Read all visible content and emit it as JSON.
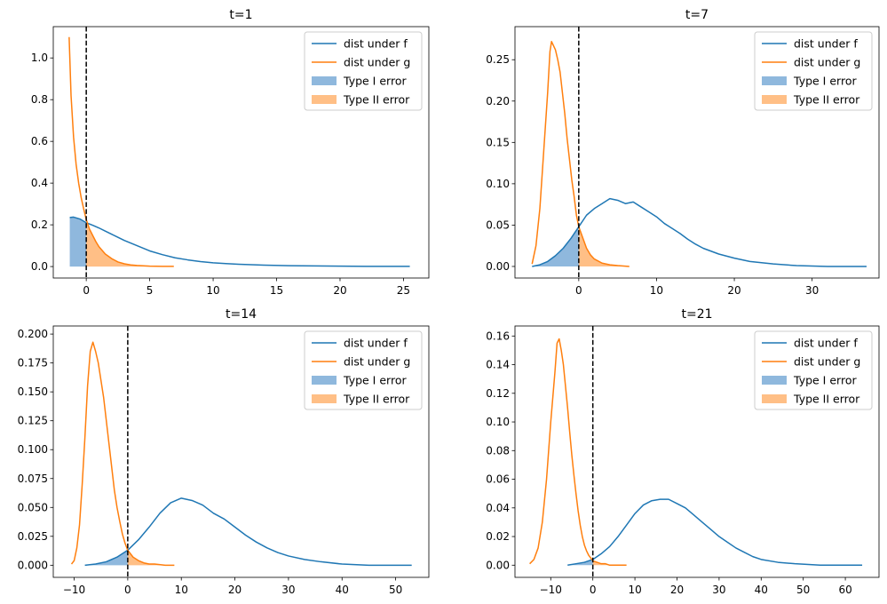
{
  "colors": {
    "f": "#1f77b4",
    "g": "#ff7f0e",
    "type1_fill": "#8fb8dd",
    "type2_fill": "#ffbf86",
    "threshold": "#000000"
  },
  "legend": {
    "labels": [
      "dist under f",
      "dist under g",
      "Type I error",
      "Type II error"
    ],
    "placement": "upper right"
  },
  "chart_data": [
    {
      "type": "line",
      "title": "t=1",
      "threshold_x": 0,
      "xlim": [
        -2.6,
        27
      ],
      "ylim": [
        -0.055,
        1.15
      ],
      "xticks": [
        0,
        5,
        10,
        15,
        20,
        25
      ],
      "yticks": [
        0.0,
        0.2,
        0.4,
        0.6,
        0.8,
        1.0
      ],
      "ytick_labels": [
        "0.0",
        "0.2",
        "0.4",
        "0.6",
        "0.8",
        "1.0"
      ],
      "series": [
        {
          "name": "dist under f",
          "x": [
            -1.3,
            -1.0,
            -0.5,
            0.0,
            0.5,
            1.0,
            1.5,
            2.0,
            2.5,
            3.0,
            4.0,
            5.0,
            6.0,
            7.0,
            8.0,
            9.0,
            10.0,
            11.0,
            12.0,
            14.0,
            16.0,
            18.0,
            20.0,
            22.0,
            25.5
          ],
          "y": [
            0.235,
            0.237,
            0.228,
            0.21,
            0.198,
            0.185,
            0.17,
            0.155,
            0.14,
            0.125,
            0.1,
            0.075,
            0.057,
            0.042,
            0.032,
            0.024,
            0.018,
            0.014,
            0.011,
            0.007,
            0.004,
            0.003,
            0.002,
            0.001,
            0.001
          ]
        },
        {
          "name": "dist under g",
          "x": [
            -1.35,
            -1.2,
            -1.0,
            -0.8,
            -0.6,
            -0.4,
            -0.2,
            0.0,
            0.25,
            0.5,
            0.75,
            1.0,
            1.5,
            2.0,
            2.5,
            3.0,
            3.5,
            4.0,
            5.0,
            6.0,
            6.9
          ],
          "y": [
            1.1,
            0.82,
            0.62,
            0.49,
            0.4,
            0.33,
            0.275,
            0.225,
            0.18,
            0.15,
            0.12,
            0.095,
            0.06,
            0.038,
            0.022,
            0.013,
            0.008,
            0.005,
            0.002,
            0.001,
            0.001
          ]
        }
      ]
    },
    {
      "type": "line",
      "title": "t=7",
      "threshold_x": 0,
      "xlim": [
        -8.2,
        38.6
      ],
      "ylim": [
        -0.014,
        0.29
      ],
      "xticks": [
        0,
        10,
        20,
        30
      ],
      "yticks": [
        0.0,
        0.05,
        0.1,
        0.15,
        0.2,
        0.25
      ],
      "ytick_labels": [
        "0.00",
        "0.05",
        "0.10",
        "0.15",
        "0.20",
        "0.25"
      ],
      "series": [
        {
          "name": "dist under f",
          "x": [
            -6.0,
            -5.0,
            -4.0,
            -3.0,
            -2.0,
            -1.0,
            0.0,
            1.0,
            2.0,
            3.0,
            4.0,
            5.0,
            6.0,
            7.0,
            8.0,
            9.0,
            10.0,
            11.0,
            12.0,
            13.0,
            14.0,
            15.0,
            16.0,
            18.0,
            20.0,
            22.0,
            25.0,
            28.0,
            32.0,
            37.0
          ],
          "y": [
            0.0,
            0.002,
            0.006,
            0.013,
            0.022,
            0.034,
            0.048,
            0.062,
            0.07,
            0.076,
            0.082,
            0.08,
            0.076,
            0.078,
            0.072,
            0.066,
            0.06,
            0.052,
            0.046,
            0.04,
            0.033,
            0.027,
            0.022,
            0.015,
            0.01,
            0.006,
            0.003,
            0.001,
            0.0,
            0.0
          ]
        },
        {
          "name": "dist under g",
          "x": [
            -6.0,
            -5.5,
            -5.0,
            -4.5,
            -4.0,
            -3.7,
            -3.5,
            -3.3,
            -3.0,
            -2.7,
            -2.4,
            -2.1,
            -1.8,
            -1.5,
            -1.2,
            -0.9,
            -0.6,
            -0.3,
            0.0,
            0.5,
            1.0,
            1.5,
            2.0,
            3.0,
            4.0,
            5.0,
            6.5
          ],
          "y": [
            0.003,
            0.025,
            0.07,
            0.14,
            0.21,
            0.26,
            0.272,
            0.268,
            0.262,
            0.25,
            0.235,
            0.21,
            0.185,
            0.155,
            0.13,
            0.105,
            0.085,
            0.062,
            0.048,
            0.035,
            0.022,
            0.014,
            0.009,
            0.004,
            0.002,
            0.001,
            0.0
          ]
        }
      ]
    },
    {
      "type": "line",
      "title": "t=14",
      "threshold_x": 0,
      "xlim": [
        -13.9,
        56.2
      ],
      "ylim": [
        -0.0105,
        0.207
      ],
      "xticks": [
        -10,
        0,
        10,
        20,
        30,
        40,
        50
      ],
      "yticks": [
        0.0,
        0.025,
        0.05,
        0.075,
        0.1,
        0.125,
        0.15,
        0.175,
        0.2
      ],
      "ytick_labels": [
        "0.000",
        "0.025",
        "0.050",
        "0.075",
        "0.100",
        "0.125",
        "0.150",
        "0.175",
        "0.200"
      ],
      "series": [
        {
          "name": "dist under f",
          "x": [
            -8.0,
            -6.0,
            -4.0,
            -2.0,
            0.0,
            2.0,
            4.0,
            6.0,
            8.0,
            10.0,
            12.0,
            14.0,
            16.0,
            18.0,
            20.0,
            22.0,
            24.0,
            26.0,
            28.0,
            30.0,
            33.0,
            36.0,
            40.0,
            45.0,
            53.0
          ],
          "y": [
            0.0,
            0.001,
            0.003,
            0.007,
            0.013,
            0.022,
            0.033,
            0.045,
            0.054,
            0.058,
            0.056,
            0.052,
            0.045,
            0.04,
            0.033,
            0.026,
            0.02,
            0.015,
            0.011,
            0.008,
            0.005,
            0.003,
            0.001,
            0.0,
            0.0
          ]
        },
        {
          "name": "dist under g",
          "x": [
            -10.5,
            -10.0,
            -9.5,
            -9.0,
            -8.5,
            -8.0,
            -7.5,
            -7.0,
            -6.5,
            -6.0,
            -5.5,
            -5.0,
            -4.5,
            -4.0,
            -3.5,
            -3.0,
            -2.5,
            -2.0,
            -1.5,
            -1.0,
            -0.5,
            0.0,
            1.0,
            2.0,
            3.0,
            4.0,
            5.0,
            7.0,
            8.7
          ],
          "y": [
            0.001,
            0.004,
            0.015,
            0.035,
            0.07,
            0.11,
            0.155,
            0.185,
            0.193,
            0.185,
            0.175,
            0.16,
            0.145,
            0.125,
            0.105,
            0.085,
            0.065,
            0.05,
            0.038,
            0.027,
            0.019,
            0.013,
            0.007,
            0.004,
            0.002,
            0.001,
            0.001,
            0.0,
            0.0
          ]
        }
      ]
    },
    {
      "type": "line",
      "title": "t=21",
      "threshold_x": 0,
      "xlim": [
        -18.5,
        68
      ],
      "ylim": [
        -0.0085,
        0.167
      ],
      "xticks": [
        -10,
        0,
        10,
        20,
        30,
        40,
        50,
        60
      ],
      "yticks": [
        0.0,
        0.02,
        0.04,
        0.06,
        0.08,
        0.1,
        0.12,
        0.14,
        0.16
      ],
      "ytick_labels": [
        "0.00",
        "0.02",
        "0.04",
        "0.06",
        "0.08",
        "0.10",
        "0.12",
        "0.14",
        "0.16"
      ],
      "series": [
        {
          "name": "dist under f",
          "x": [
            -6.0,
            -4.0,
            -2.0,
            0.0,
            2.0,
            4.0,
            6.0,
            8.0,
            10.0,
            12.0,
            14.0,
            16.0,
            18.0,
            20.0,
            22.0,
            24.0,
            26.0,
            28.0,
            30.0,
            32.0,
            34.0,
            36.0,
            38.0,
            40.0,
            44.0,
            48.0,
            54.0,
            60.0,
            64.0
          ],
          "y": [
            0.0,
            0.001,
            0.002,
            0.004,
            0.008,
            0.013,
            0.02,
            0.028,
            0.036,
            0.042,
            0.045,
            0.046,
            0.046,
            0.043,
            0.04,
            0.035,
            0.03,
            0.025,
            0.02,
            0.016,
            0.012,
            0.009,
            0.006,
            0.004,
            0.002,
            0.001,
            0.0,
            0.0,
            0.0
          ]
        },
        {
          "name": "dist under g",
          "x": [
            -15.0,
            -14.0,
            -13.0,
            -12.0,
            -11.0,
            -10.0,
            -9.0,
            -8.5,
            -8.0,
            -7.5,
            -7.0,
            -6.5,
            -6.0,
            -5.5,
            -5.0,
            -4.5,
            -4.0,
            -3.5,
            -3.0,
            -2.5,
            -2.0,
            -1.5,
            -1.0,
            -0.5,
            0.0,
            1.0,
            2.0,
            3.0,
            4.0,
            6.0,
            8.0
          ],
          "y": [
            0.001,
            0.004,
            0.012,
            0.03,
            0.06,
            0.1,
            0.135,
            0.155,
            0.158,
            0.15,
            0.14,
            0.125,
            0.11,
            0.093,
            0.077,
            0.063,
            0.05,
            0.038,
            0.028,
            0.02,
            0.014,
            0.01,
            0.007,
            0.005,
            0.003,
            0.002,
            0.001,
            0.001,
            0.0,
            0.0,
            0.0
          ]
        }
      ]
    }
  ]
}
